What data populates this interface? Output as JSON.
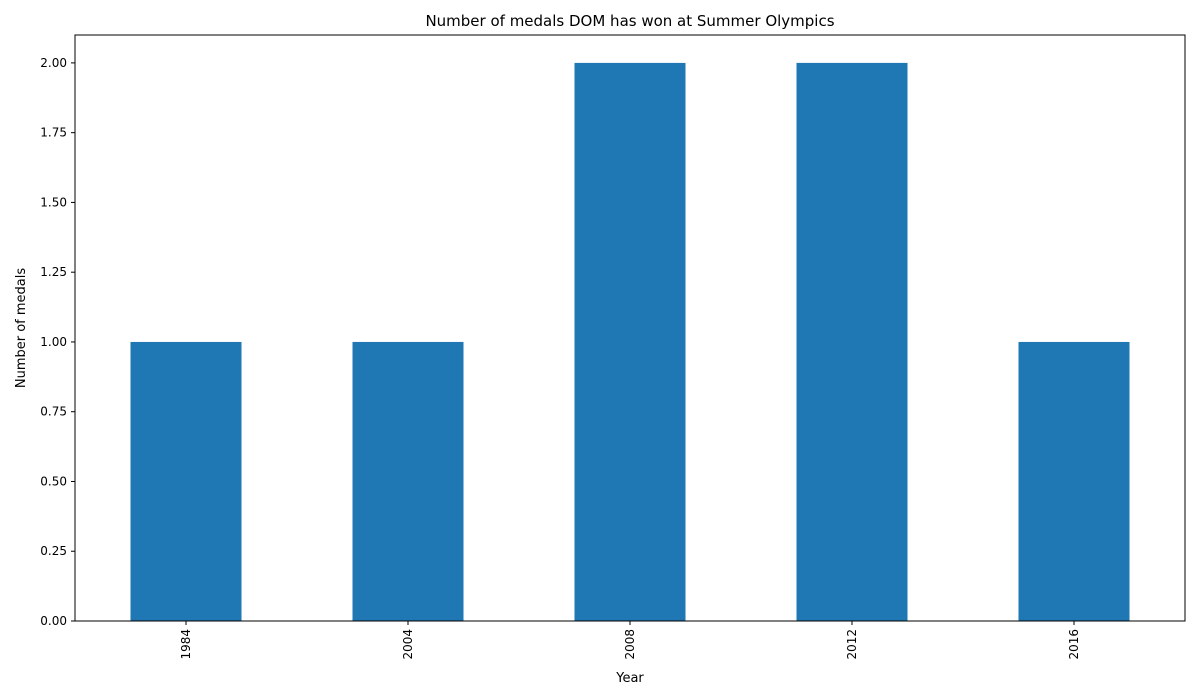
{
  "chart_data": {
    "type": "bar",
    "title": "Number of medals DOM has won at Summer Olympics",
    "xlabel": "Year",
    "ylabel": "Number of medals",
    "categories": [
      "1984",
      "2004",
      "2008",
      "2012",
      "2016"
    ],
    "values": [
      1,
      1,
      2,
      2,
      1
    ],
    "ylim": [
      0,
      2.1
    ],
    "yticks": [
      "0.00",
      "0.25",
      "0.50",
      "0.75",
      "1.00",
      "1.25",
      "1.50",
      "1.75",
      "2.00"
    ],
    "bar_color": "#1f77b4",
    "grid": false,
    "legend": "none",
    "xtick_rotation": "vertical"
  }
}
